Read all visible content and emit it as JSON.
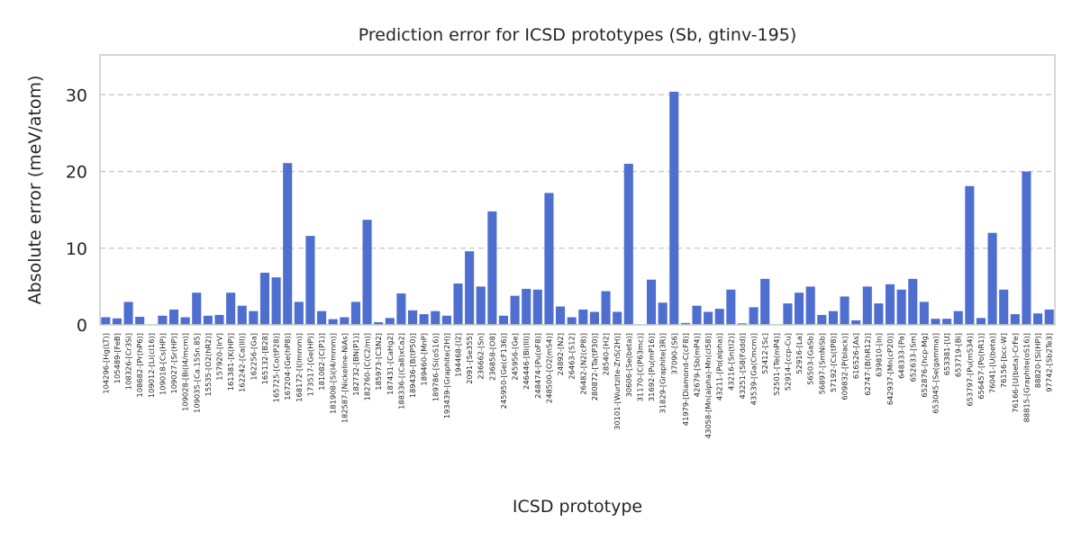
{
  "chart_data": {
    "type": "bar",
    "title": "Prediction error for ICSD prototypes (Sb, gtinv-195)",
    "xlabel": "ICSD prototype",
    "ylabel": "Absolute error (meV/atom)",
    "ylim": [
      0,
      35.2
    ],
    "yticks": [
      0,
      10,
      20,
      30
    ],
    "grid": "horizontal dashed",
    "colors": {
      "bar": "#4e6fcf",
      "frame": "#cccccc",
      "grid": "#c8c8c8",
      "text": "#262626"
    },
    "categories": [
      "104296-[Hg(LT)]",
      "105489-[FeB]",
      "108326-[Cr3Si]",
      "108682-[Pr(hP6)]",
      "109012-[Li(cI16)]",
      "109018-[Cs(HP)]",
      "109027-[Sr(HP)]",
      "109028-[Bi(I4/mcm)]",
      "109035-[Ca.15Sn.85]",
      "15535-[O2(hR2)]",
      "157920-[IrV]",
      "161381-[K(HP)]",
      "162242-[Ca(III)]",
      "162256-[Ga]",
      "165132-[B28]",
      "165725-[Co(tP28)]",
      "167204-[Ge(hP8)]",
      "168172-[I(Immm)]",
      "173517-[Ge(HP)]",
      "181082-[C(P1)]",
      "181908-[Si(I4/mmm)]",
      "182587-[Nickeline-NiAs]",
      "182732-[BN(P1)]",
      "182760-[C(C2/m)]",
      "185973-[C3N2]",
      "187431-[CaHg2]",
      "188336-[(Ca8)xCa2]",
      "189436-[B(tP50)]",
      "189460-[MnP]",
      "189786-[Si(oS16)]",
      "193439-[Graphite(2H)]",
      "194468-[I2]",
      "2091-[Se355]",
      "236662-[Sn]",
      "236858-[O8]",
      "245950-[Ge(cF136)]",
      "245956-[Ge]",
      "246446-[Bi(III)]",
      "248474-[Pu(oF8)]",
      "248500-[O2(mS4)]",
      "24892-[N2]",
      "26463-[S12]",
      "26482-[N2(cP8)]",
      "280872-[Ta(tP30)]",
      "28540-[H2]",
      "30101-[Wurtzite-ZnS(2H)]",
      "30606-[Se(beta)]",
      "31170-[C(P63mc)]",
      "31692-[Pu(mP16)]",
      "31829-[Graphite(3R)]",
      "37090-[S6]",
      "41979-[Diamond-C(cF8)]",
      "42679-[Sb(mP4)]",
      "43058-[Mn(alpha)-Mn(cI58)]",
      "43211-[Po(alpha)]",
      "43216-[Sn(tI2)]",
      "43251-[S8(Fddd)]",
      "43539-[Ga(Cmcm)]",
      "52412-[Sc]",
      "52501-[Te(mP4)]",
      "52914-[ccp-Cu]",
      "52916-[La]",
      "56503-[GaSb]",
      "56897-[SmNiSb]",
      "57192-[Cs(tP8)]",
      "609832-[P(black)]",
      "616526-[As]",
      "62747-[B(hR12)]",
      "639810-[In]",
      "642937-[Mn(cP20)]",
      "648333-[Pa]",
      "652633-[Sm]",
      "652876-[hcp-Mg]",
      "653045-[Se(gamma)]",
      "653381-[U]",
      "653719-[Bi]",
      "653797-[Pu(mS34)]",
      "656457-[Po(hR1)]",
      "76041-[U(beta)]",
      "76156-[bcc-W]",
      "76166-[U(beta)-CrFe]",
      "88815-[Graphite(oS16)]",
      "88820-[Si(HP)]",
      "97742-[Sb2Te3]"
    ],
    "values": [
      1.0,
      0.85,
      3.0,
      1.05,
      0.0,
      1.2,
      2.0,
      1.0,
      4.2,
      1.2,
      1.3,
      4.2,
      2.5,
      1.8,
      6.8,
      6.2,
      21.1,
      3.0,
      11.6,
      1.8,
      0.75,
      1.0,
      3.0,
      13.7,
      0.35,
      0.9,
      4.1,
      1.9,
      1.4,
      1.8,
      1.2,
      5.4,
      9.6,
      5.0,
      14.8,
      1.2,
      3.8,
      4.7,
      4.6,
      17.2,
      2.4,
      1.0,
      2.0,
      1.7,
      4.4,
      1.7,
      21.0,
      0.0,
      5.9,
      2.9,
      30.4,
      0.25,
      2.5,
      1.7,
      2.1,
      4.6,
      0.2,
      2.3,
      6.0,
      0.0,
      2.8,
      4.2,
      5.0,
      1.3,
      1.8,
      3.7,
      0.6,
      5.0,
      2.8,
      5.3,
      4.6,
      6.0,
      3.0,
      0.8,
      0.8,
      1.8,
      18.1,
      0.9,
      12.0,
      4.6,
      1.4,
      20.0,
      1.5,
      2.0
    ]
  }
}
